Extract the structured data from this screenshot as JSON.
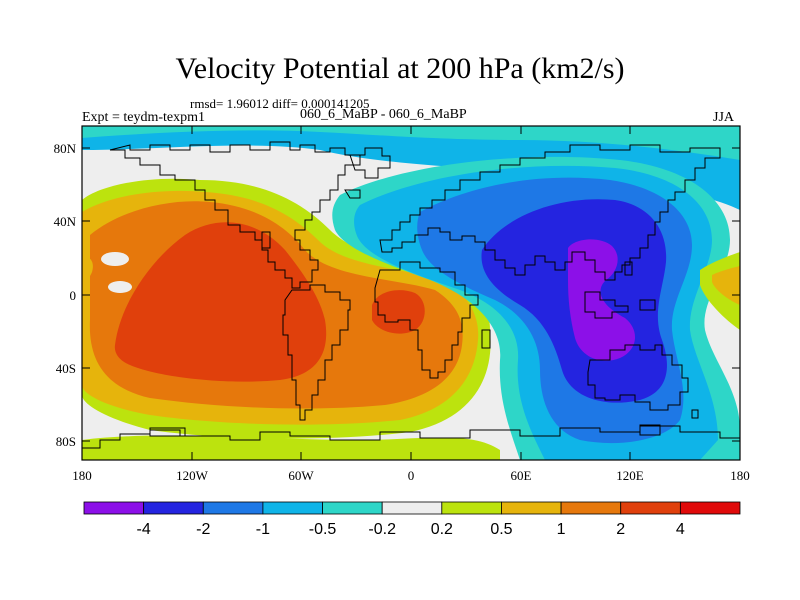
{
  "title": "Velocity Potential at 200 hPa (km2/s)",
  "stats": "rmsd= 1.96012 diff= 0.000141205",
  "expt": "Expt = teydm-texpm1",
  "comparison": "060_6_MaBP - 060_6_MaBP",
  "season": "JJA",
  "lat_ticks": [
    "80N",
    "40N",
    "0",
    "40S",
    "80S"
  ],
  "lon_ticks": [
    "180",
    "120W",
    "60W",
    "0",
    "60E",
    "120E",
    "180"
  ],
  "colorbar": {
    "labels": [
      "-4",
      "-2",
      "-1",
      "-0.5",
      "-0.2",
      "0.2",
      "0.5",
      "1",
      "2",
      "4"
    ],
    "colors": [
      "#8c10e8",
      "#2424e0",
      "#1e78e6",
      "#0fb4e8",
      "#2ed6c8",
      "#eeeeee",
      "#bce30e",
      "#e6b40c",
      "#e6780c",
      "#e0400c",
      "#e00a0a"
    ]
  }
}
